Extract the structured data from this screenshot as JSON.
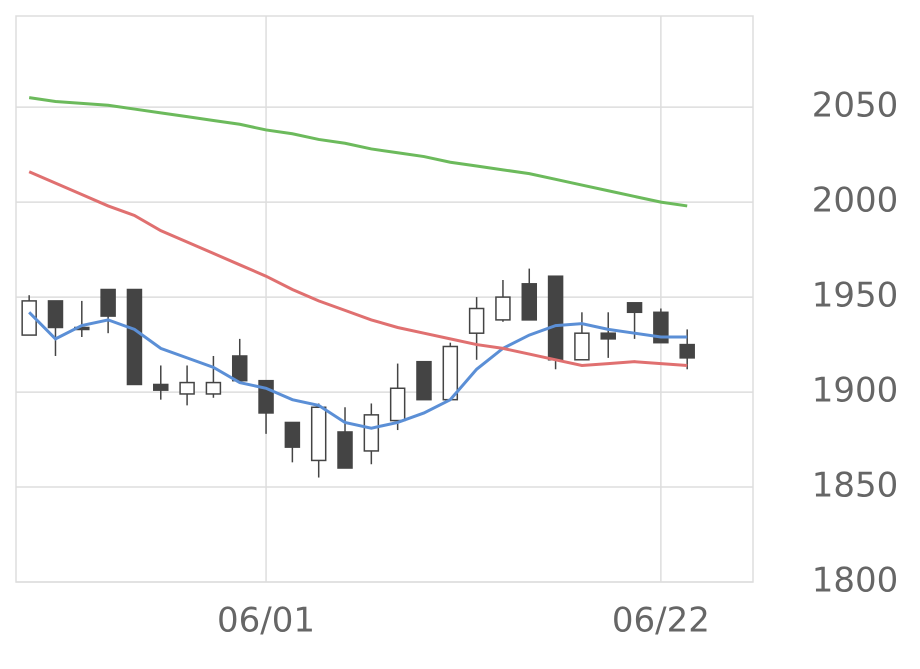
{
  "chart_data": {
    "type": "candlestick",
    "categories": [
      null,
      null,
      null,
      null,
      null,
      null,
      null,
      null,
      null,
      "06/01",
      null,
      null,
      null,
      null,
      null,
      null,
      null,
      null,
      null,
      null,
      null,
      null,
      null,
      null,
      "06/22",
      null
    ],
    "open": [
      1930,
      1948,
      1934,
      1954,
      1954,
      1904,
      1899,
      1899,
      1919,
      1906,
      1884,
      1864,
      1879,
      1869,
      1885,
      1916,
      1896,
      1931,
      1938,
      1957,
      1961,
      1917,
      1931,
      1947,
      1942,
      1925
    ],
    "high": [
      1951,
      1948,
      1948,
      1954,
      1954,
      1914,
      1914,
      1919,
      1928,
      1906,
      1884,
      1894,
      1892,
      1894,
      1915,
      1916,
      1926,
      1950,
      1959,
      1965,
      1961,
      1942,
      1942,
      1947,
      1944,
      1933
    ],
    "low": [
      1930,
      1919,
      1929,
      1931,
      1904,
      1896,
      1893,
      1897,
      1906,
      1878,
      1863,
      1855,
      1860,
      1862,
      1880,
      1896,
      1896,
      1917,
      1937,
      1938,
      1912,
      1917,
      1918,
      1928,
      1926,
      1912
    ],
    "close": [
      1948,
      1934,
      1933,
      1940,
      1904,
      1901,
      1905,
      1905,
      1906,
      1889,
      1871,
      1892,
      1860,
      1888,
      1902,
      1896,
      1924,
      1944,
      1950,
      1938,
      1917,
      1931,
      1928,
      1942,
      1926,
      1918
    ],
    "up_color": "#ffffff",
    "down_color": "#444444",
    "lines": [
      {
        "color": "#5b8fd6",
        "values": [
          1942,
          1928,
          1935,
          1938,
          1933,
          1923,
          1918,
          1913,
          1905,
          1902,
          1896,
          1893,
          1884,
          1881,
          1884,
          1889,
          1896,
          1912,
          1923,
          1930,
          1935,
          1936,
          1933,
          1931,
          1929,
          1929
        ]
      },
      {
        "color": "#e07070",
        "values": [
          2016,
          2010,
          2004,
          1998,
          1993,
          1985,
          1979,
          1973,
          1967,
          1961,
          1954,
          1948,
          1943,
          1938,
          1934,
          1931,
          1928,
          1925,
          1923,
          1920,
          1917,
          1914,
          1915,
          1916,
          1915,
          1914
        ]
      },
      {
        "color": "#6cba5c",
        "values": [
          2055,
          2053,
          2052,
          2051,
          2049,
          2047,
          2045,
          2043,
          2041,
          2038,
          2036,
          2033,
          2031,
          2028,
          2026,
          2024,
          2021,
          2019,
          2017,
          2015,
          2012,
          2009,
          2006,
          2003,
          2000,
          1998
        ]
      }
    ],
    "ylim": [
      1800,
      2098
    ],
    "yticks": [
      1800,
      1850,
      1900,
      1950,
      2000,
      2050
    ],
    "grid": true
  }
}
